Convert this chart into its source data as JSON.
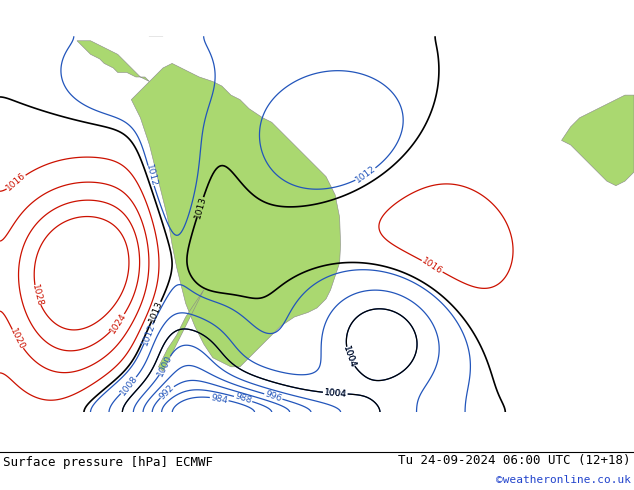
{
  "title_left": "Surface pressure [hPa] ECMWF",
  "title_right": "Tu 24-09-2024 06:00 UTC (12+18)",
  "credit": "©weatheronline.co.uk",
  "land_color": "#aad870",
  "ocean_color": "#d8dde8",
  "figsize": [
    6.34,
    4.9
  ],
  "dpi": 100,
  "xlim": [
    -110,
    30
  ],
  "ylim": [
    -65,
    18
  ]
}
